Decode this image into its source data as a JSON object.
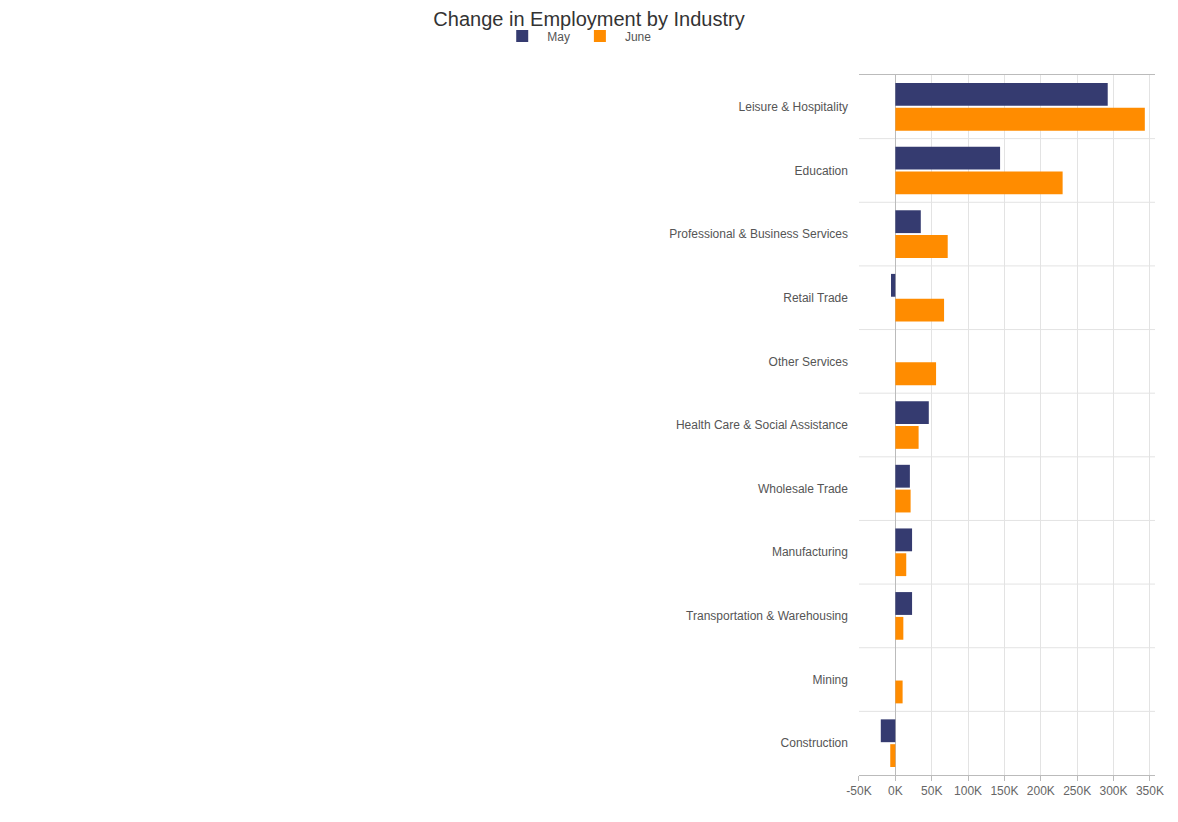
{
  "chart_data": {
    "type": "bar",
    "orientation": "horizontal",
    "title": "Change in Employment by Industry",
    "categories": [
      "Leisure & Hospitality",
      "Education",
      "Professional & Business Services",
      "Retail Trade",
      "Other Services",
      "Health Care & Social Assistance",
      "Wholesale Trade",
      "Manufacturing",
      "Transportation & Warehousing",
      "Mining",
      "Construction"
    ],
    "series": [
      {
        "name": "May",
        "color": "#353b70",
        "values": [
          292000,
          144000,
          35000,
          -6000,
          0,
          46000,
          20000,
          23000,
          23000,
          0,
          -20000
        ]
      },
      {
        "name": "June",
        "color": "#ff8c00",
        "values": [
          343000,
          230000,
          72000,
          67000,
          56000,
          32000,
          21000,
          15000,
          11000,
          10000,
          -7000
        ]
      }
    ],
    "xlim": [
      -50000,
      357000
    ],
    "xticks": [
      {
        "value": -50000,
        "label": "-50K"
      },
      {
        "value": 0,
        "label": "0K"
      },
      {
        "value": 50000,
        "label": "50K"
      },
      {
        "value": 100000,
        "label": "100K"
      },
      {
        "value": 150000,
        "label": "150K"
      },
      {
        "value": 200000,
        "label": "200K"
      },
      {
        "value": 250000,
        "label": "250K"
      },
      {
        "value": 300000,
        "label": "300K"
      },
      {
        "value": 350000,
        "label": "350K"
      }
    ],
    "grid": true,
    "legend": "top"
  }
}
